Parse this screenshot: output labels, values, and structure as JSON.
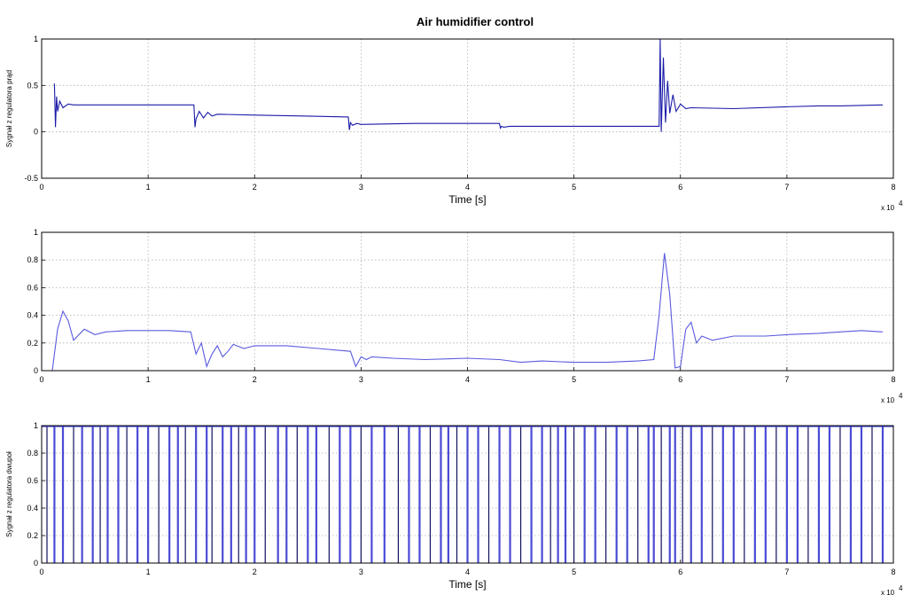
{
  "figure": {
    "title": "Air humidifier control"
  },
  "chart_data": [
    {
      "type": "line",
      "title": "Air humidifier control",
      "xlabel": "Time [s]",
      "ylabel": "Sygnał z regulatora prąd",
      "x_exponent_label": "x 10",
      "x_exponent_power": "4",
      "xlim": [
        0,
        8
      ],
      "ylim": [
        -0.5,
        1
      ],
      "xticks": [
        "0",
        "1",
        "2",
        "3",
        "4",
        "5",
        "6",
        "7",
        "8"
      ],
      "yticks": [
        "-0.5",
        "0",
        "0.5",
        "1"
      ],
      "grid": true,
      "line_color": "#1a1aa8",
      "series": [
        {
          "x": [
            0.12,
            0.13,
            0.14,
            0.15,
            0.17,
            0.2,
            0.25,
            0.3,
            0.5,
            1.43,
            1.44,
            1.45,
            1.48,
            1.52,
            1.56,
            1.6,
            1.65,
            2.0,
            2.5,
            2.88,
            2.89,
            2.9,
            2.92,
            2.96,
            3.0,
            3.5,
            4.3,
            4.31,
            4.32,
            4.34,
            4.4,
            5.0,
            5.8,
            5.81,
            5.82,
            5.84,
            5.86,
            5.88,
            5.9,
            5.93,
            5.96,
            6.0,
            6.05,
            6.1,
            6.5,
            7.0,
            7.3,
            7.5,
            7.9
          ],
          "y": [
            0.52,
            0.05,
            0.38,
            0.22,
            0.33,
            0.26,
            0.3,
            0.29,
            0.29,
            0.29,
            0.05,
            0.14,
            0.22,
            0.15,
            0.21,
            0.17,
            0.19,
            0.18,
            0.17,
            0.16,
            0.02,
            0.1,
            0.07,
            0.09,
            0.08,
            0.09,
            0.09,
            0.04,
            0.06,
            0.05,
            0.06,
            0.06,
            0.06,
            1.0,
            0.0,
            0.8,
            0.1,
            0.55,
            0.2,
            0.4,
            0.22,
            0.3,
            0.25,
            0.26,
            0.25,
            0.27,
            0.28,
            0.28,
            0.29
          ]
        }
      ]
    },
    {
      "type": "line",
      "xlabel": "",
      "ylabel": "",
      "x_exponent_label": "x 10",
      "x_exponent_power": "4",
      "xlim": [
        0,
        8
      ],
      "ylim": [
        0,
        1
      ],
      "xticks": [
        "0",
        "1",
        "2",
        "3",
        "4",
        "5",
        "6",
        "7",
        "8"
      ],
      "yticks": [
        "0",
        "0.2",
        "0.4",
        "0.6",
        "0.8",
        "1"
      ],
      "grid": true,
      "line_color": "#5a5adf",
      "series": [
        {
          "x": [
            0.1,
            0.15,
            0.2,
            0.25,
            0.3,
            0.4,
            0.5,
            0.6,
            0.8,
            1.0,
            1.2,
            1.4,
            1.45,
            1.5,
            1.55,
            1.6,
            1.65,
            1.7,
            1.75,
            1.8,
            1.9,
            2.0,
            2.3,
            2.6,
            2.9,
            2.95,
            3.0,
            3.05,
            3.1,
            3.3,
            3.6,
            4.0,
            4.3,
            4.5,
            4.7,
            5.0,
            5.3,
            5.6,
            5.75,
            5.8,
            5.85,
            5.9,
            5.95,
            6.0,
            6.05,
            6.1,
            6.15,
            6.2,
            6.3,
            6.5,
            6.8,
            7.0,
            7.3,
            7.5,
            7.7,
            7.9
          ],
          "y": [
            0.0,
            0.3,
            0.43,
            0.36,
            0.22,
            0.3,
            0.26,
            0.28,
            0.29,
            0.29,
            0.29,
            0.28,
            0.12,
            0.2,
            0.03,
            0.12,
            0.18,
            0.1,
            0.14,
            0.19,
            0.16,
            0.18,
            0.18,
            0.16,
            0.14,
            0.03,
            0.1,
            0.08,
            0.1,
            0.09,
            0.08,
            0.09,
            0.08,
            0.06,
            0.07,
            0.06,
            0.06,
            0.07,
            0.08,
            0.4,
            0.85,
            0.55,
            0.02,
            0.03,
            0.3,
            0.35,
            0.2,
            0.25,
            0.22,
            0.25,
            0.25,
            0.26,
            0.27,
            0.28,
            0.29,
            0.28
          ]
        }
      ]
    },
    {
      "type": "line",
      "xlabel": "Time [s]",
      "ylabel": "Sygnał z regulatora dwupoł",
      "x_exponent_label": "x 10",
      "x_exponent_power": "4",
      "xlim": [
        0,
        8
      ],
      "ylim": [
        0,
        1
      ],
      "xticks": [
        "0",
        "1",
        "2",
        "3",
        "4",
        "5",
        "6",
        "7",
        "8"
      ],
      "yticks": [
        "0",
        "0.2",
        "0.4",
        "0.6",
        "0.8",
        "1"
      ],
      "grid": true,
      "line_color": "#4a4ad6",
      "switch_line_color": "#101060",
      "switching_x": [
        0.05,
        0.12,
        0.2,
        0.3,
        0.38,
        0.48,
        0.55,
        0.62,
        0.72,
        0.8,
        0.9,
        1.0,
        1.1,
        1.2,
        1.28,
        1.35,
        1.45,
        1.55,
        1.6,
        1.7,
        1.78,
        1.85,
        1.92,
        2.0,
        2.1,
        2.22,
        2.3,
        2.4,
        2.5,
        2.58,
        2.7,
        2.8,
        2.9,
        3.0,
        3.1,
        3.22,
        3.35,
        3.45,
        3.55,
        3.65,
        3.75,
        3.82,
        3.9,
        4.0,
        4.1,
        4.2,
        4.3,
        4.4,
        4.5,
        4.6,
        4.7,
        4.78,
        4.85,
        4.92,
        5.0,
        5.1,
        5.2,
        5.3,
        5.4,
        5.5,
        5.6,
        5.7,
        5.75,
        5.82,
        5.9,
        5.95,
        6.02,
        6.1,
        6.2,
        6.3,
        6.4,
        6.5,
        6.6,
        6.7,
        6.8,
        6.9,
        7.0,
        7.1,
        7.2,
        7.3,
        7.4,
        7.5,
        7.6,
        7.7,
        7.8,
        7.9
      ]
    }
  ]
}
